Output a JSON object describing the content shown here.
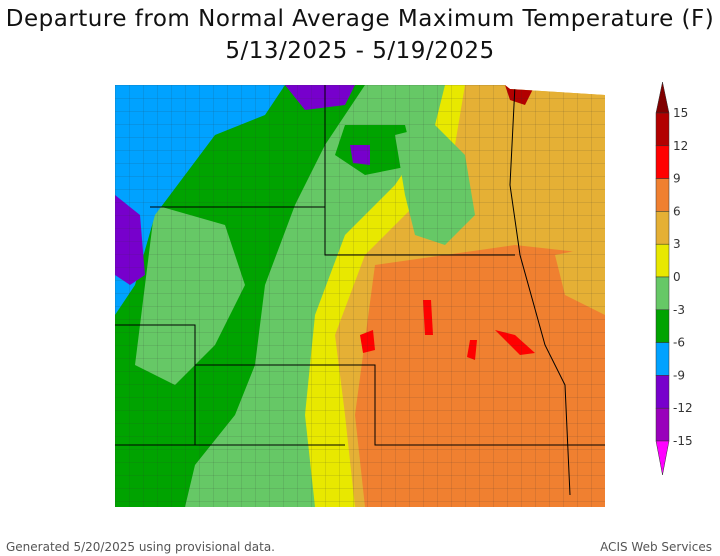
{
  "title_line1": "Departure from Normal Average Maximum Temperature (F)",
  "title_line2": "5/13/2025 - 5/19/2025",
  "legend": {
    "ticks": [
      "15",
      "12",
      "9",
      "6",
      "3",
      "0",
      "-3",
      "-6",
      "-9",
      "-12",
      "-15"
    ],
    "colors": {
      "above_15": "#800000",
      "12_to_15": "#b20000",
      "9_to_12": "#ff0000",
      "6_to_9": "#f08030",
      "3_to_6": "#e5b035",
      "0_to_3": "#e8e800",
      "-3_to_0": "#66c866",
      "-6_to_-3": "#00a300",
      "-9_to_-6": "#00a2ff",
      "-12_to_-9": "#7700cc",
      "-15_to_-12": "#9900bb",
      "below_-15": "#ff00ff"
    }
  },
  "footer": {
    "left": "Generated 5/20/2025 using provisional data.",
    "right": "ACIS Web Services"
  }
}
